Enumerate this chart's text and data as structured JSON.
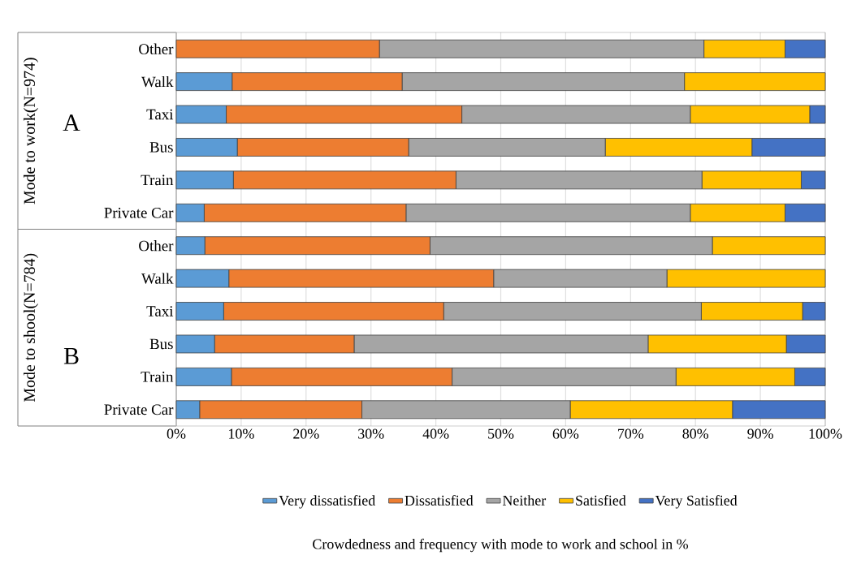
{
  "chart_data": {
    "type": "bar",
    "orientation": "horizontal",
    "stacked": true,
    "categories": [
      "Other",
      "Walk",
      "Taxi",
      "Bus",
      "Train",
      "Private Car",
      "Other",
      "Walk",
      "Taxi",
      "Bus",
      "Train",
      "Private Car"
    ],
    "series": [
      {
        "name": "Very dissatisfied",
        "color": "#5b9bd5",
        "values": [
          0,
          8.6,
          7.7,
          9.4,
          8.8,
          4.3,
          4.4,
          8.1,
          7.3,
          5.9,
          8.5,
          3.6
        ]
      },
      {
        "name": "Dissatisfied",
        "color": "#ed7d31",
        "values": [
          31.3,
          26.2,
          36.3,
          26.4,
          34.3,
          31.1,
          34.7,
          40.8,
          33.9,
          21.5,
          34.0,
          25.0
        ]
      },
      {
        "name": "Neither",
        "color": "#a5a5a5",
        "values": [
          50.0,
          43.5,
          35.2,
          30.3,
          37.9,
          43.8,
          43.5,
          26.7,
          39.7,
          45.3,
          34.5,
          32.1
        ]
      },
      {
        "name": "Satisfied",
        "color": "#ffc000",
        "values": [
          12.5,
          21.7,
          18.4,
          22.6,
          15.3,
          14.6,
          17.4,
          24.4,
          15.6,
          21.3,
          18.3,
          25.0
        ]
      },
      {
        "name": "Very Satisfied",
        "color": "#4472c4",
        "values": [
          6.2,
          0,
          2.4,
          11.3,
          3.7,
          6.2,
          0,
          0,
          3.5,
          6.0,
          4.7,
          14.3
        ]
      }
    ],
    "xlim": [
      0,
      100
    ],
    "xticks": [
      {
        "value": 0,
        "label": "0%"
      },
      {
        "value": 10,
        "label": "10%"
      },
      {
        "value": 20,
        "label": "20%"
      },
      {
        "value": 30,
        "label": "30%"
      },
      {
        "value": 40,
        "label": "40%"
      },
      {
        "value": 50,
        "label": "50%"
      },
      {
        "value": 60,
        "label": "60%"
      },
      {
        "value": 70,
        "label": "70%"
      },
      {
        "value": 80,
        "label": "80%"
      },
      {
        "value": 90,
        "label": "90%"
      },
      {
        "value": 100,
        "label": "100%"
      }
    ],
    "grid": "x",
    "legend": "bottom",
    "annotations": [
      "Mode to work(N=974)",
      "A",
      "Mode to shool(N=784)",
      "B",
      "Crowdedness and frequency with mode to work and school in %"
    ]
  }
}
